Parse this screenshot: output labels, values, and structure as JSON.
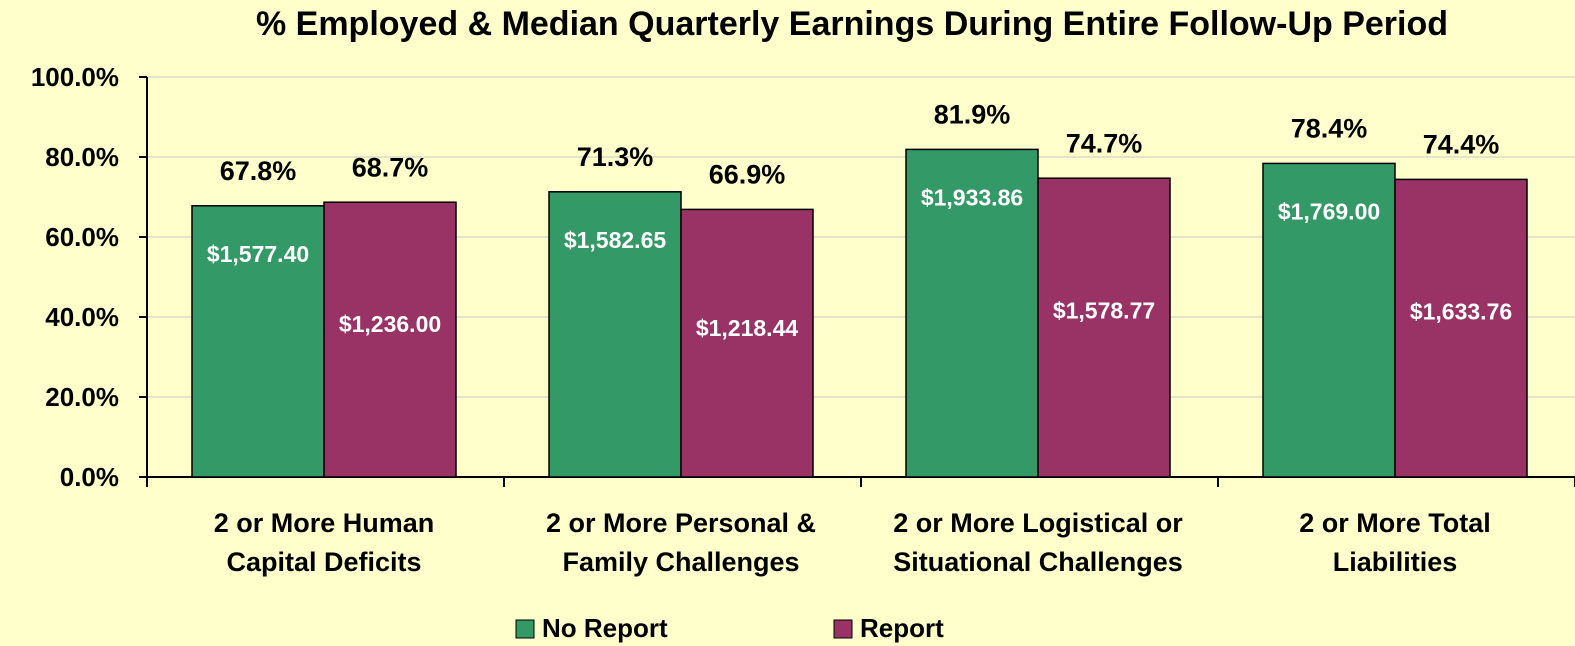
{
  "chart_data": {
    "type": "bar",
    "title": "% Employed & Median Quarterly Earnings During Entire Follow-Up Period",
    "categories": [
      "2 or More Human\nCapital Deficits",
      "2 or More Personal &\nFamily Challenges",
      "2 or More Logistical or\nSituational Challenges",
      "2 or More Total\nLiabilities"
    ],
    "series": [
      {
        "name": "No Report",
        "color": "#339966",
        "values": [
          67.8,
          71.3,
          81.9,
          78.4
        ],
        "value_labels": [
          "67.8%",
          "71.3%",
          "81.9%",
          "78.4%"
        ],
        "earnings_labels": [
          "$1,577.40",
          "$1,582.65",
          "$1,933.86",
          "$1,769.00"
        ]
      },
      {
        "name": "Report",
        "color": "#993366",
        "values": [
          68.7,
          66.9,
          74.7,
          74.4
        ],
        "value_labels": [
          "68.7%",
          "66.9%",
          "74.7%",
          "74.4%"
        ],
        "earnings_labels": [
          "$1,236.00",
          "$1,218.44",
          "$1,578.77",
          "$1,633.76"
        ]
      }
    ],
    "ylim": [
      0,
      100
    ],
    "yticks": [
      {
        "value": 0,
        "label": "0.0%"
      },
      {
        "value": 20,
        "label": "20.0%"
      },
      {
        "value": 40,
        "label": "40.0%"
      },
      {
        "value": 60,
        "label": "60.0%"
      },
      {
        "value": 80,
        "label": "80.0%"
      },
      {
        "value": 100,
        "label": "100.0%"
      }
    ],
    "grid": true,
    "legend": "bottom"
  }
}
